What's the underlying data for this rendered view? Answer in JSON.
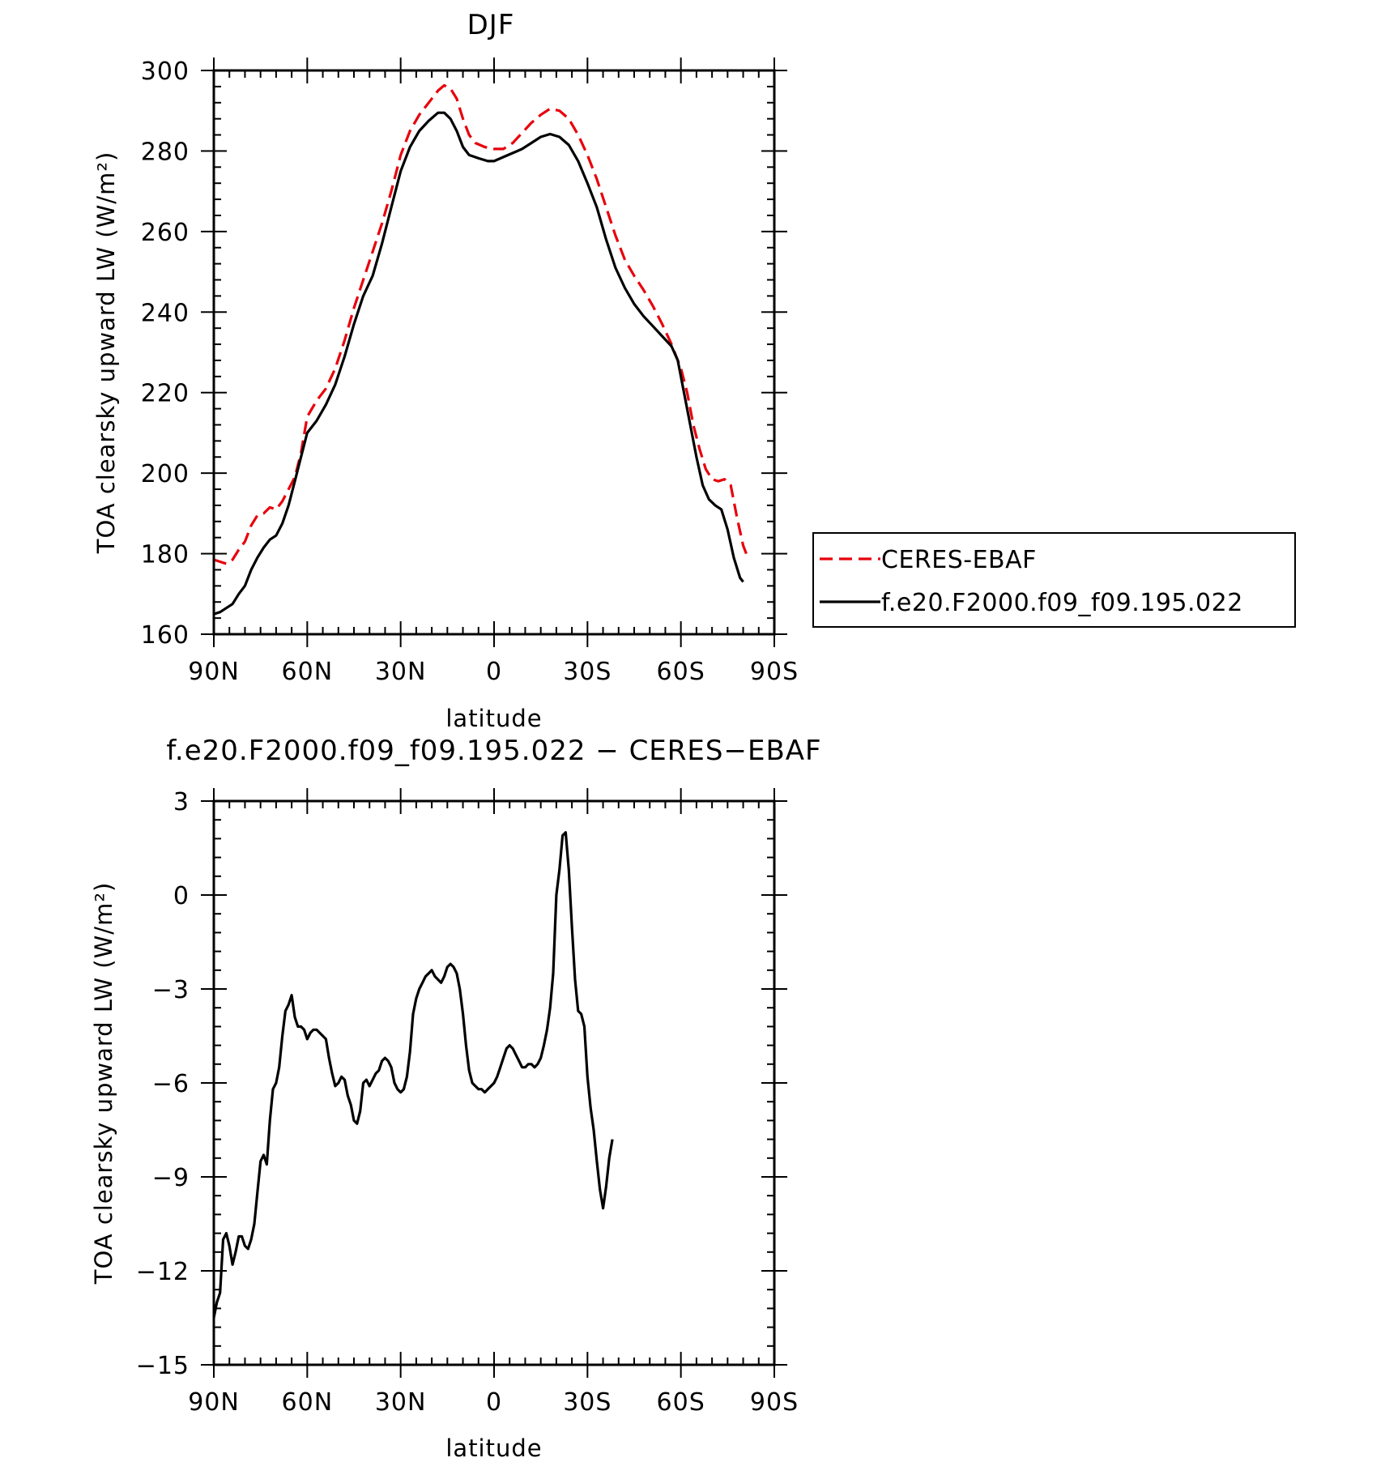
{
  "chart_data": [
    {
      "type": "line",
      "title": "DJF",
      "xlabel": "latitude",
      "ylabel": "TOA clearsky upward LW (W/m²)",
      "xlim": [
        90,
        -90
      ],
      "ylim": [
        160,
        300
      ],
      "xticks": [
        90,
        60,
        30,
        0,
        -30,
        -60,
        -90
      ],
      "xtick_labels": [
        "90N",
        "60N",
        "30N",
        "0",
        "30S",
        "60S",
        "90S"
      ],
      "yticks": [
        160,
        180,
        200,
        220,
        240,
        260,
        280,
        300
      ],
      "ytick_labels": [
        "160",
        "180",
        "200",
        "220",
        "240",
        "260",
        "280",
        "300"
      ],
      "legend_position": "right",
      "series": [
        {
          "name": "CERES-EBAF",
          "color": "#e8000b",
          "dash": "dashed",
          "points": [
            [
              90,
              178.5
            ],
            [
              88,
              178
            ],
            [
              86,
              177.5
            ],
            [
              84,
              178.5
            ],
            [
              82,
              181
            ],
            [
              80,
              183
            ],
            [
              78,
              187
            ],
            [
              76,
              189.5
            ],
            [
              74,
              190
            ],
            [
              72,
              191.5
            ],
            [
              70,
              191
            ],
            [
              68,
              193
            ],
            [
              66,
              196
            ],
            [
              64,
              199
            ],
            [
              62,
              205
            ],
            [
              60,
              214
            ],
            [
              57,
              218
            ],
            [
              54,
              221
            ],
            [
              51,
              226
            ],
            [
              48,
              233
            ],
            [
              45,
              241
            ],
            [
              42,
              248
            ],
            [
              39,
              255
            ],
            [
              36,
              262
            ],
            [
              33,
              270
            ],
            [
              30,
              279
            ],
            [
              27,
              285
            ],
            [
              24,
              289
            ],
            [
              21,
              292
            ],
            [
              18,
              295
            ],
            [
              16,
              296.3
            ],
            [
              14,
              295.5
            ],
            [
              12,
              293
            ],
            [
              10,
              288
            ],
            [
              8,
              284
            ],
            [
              6,
              282
            ],
            [
              3,
              281
            ],
            [
              0,
              280.5
            ],
            [
              -3,
              280.5
            ],
            [
              -6,
              282
            ],
            [
              -9,
              284.5
            ],
            [
              -12,
              287
            ],
            [
              -15,
              289
            ],
            [
              -18,
              290.5
            ],
            [
              -21,
              290
            ],
            [
              -24,
              288
            ],
            [
              -27,
              284
            ],
            [
              -30,
              279
            ],
            [
              -33,
              273
            ],
            [
              -36,
              266
            ],
            [
              -39,
              259
            ],
            [
              -42,
              253
            ],
            [
              -45,
              249
            ],
            [
              -48,
              245.5
            ],
            [
              -51,
              241.5
            ],
            [
              -54,
              237
            ],
            [
              -57,
              232
            ],
            [
              -60,
              226
            ],
            [
              -62,
              220
            ],
            [
              -64,
              212
            ],
            [
              -66,
              206
            ],
            [
              -68,
              201
            ],
            [
              -70,
              198.5
            ],
            [
              -72,
              198
            ],
            [
              -74,
              198.5
            ],
            [
              -76,
              197
            ],
            [
              -78,
              189
            ],
            [
              -80,
              182
            ],
            [
              -81,
              180
            ]
          ]
        },
        {
          "name": "f.e20.F2000.f09_f09.195.022",
          "color": "#000000",
          "dash": "solid",
          "points": [
            [
              90,
              165
            ],
            [
              88,
              165.5
            ],
            [
              86,
              166.5
            ],
            [
              84,
              167.5
            ],
            [
              82,
              170
            ],
            [
              80,
              172
            ],
            [
              78,
              176
            ],
            [
              76,
              179
            ],
            [
              74,
              181.5
            ],
            [
              72,
              183.5
            ],
            [
              70,
              184.5
            ],
            [
              68,
              187.5
            ],
            [
              66,
              192
            ],
            [
              64,
              198
            ],
            [
              62,
              204
            ],
            [
              60,
              210
            ],
            [
              57,
              213
            ],
            [
              54,
              217
            ],
            [
              51,
              222
            ],
            [
              48,
              229
            ],
            [
              45,
              237
            ],
            [
              42,
              244
            ],
            [
              39,
              249
            ],
            [
              36,
              257
            ],
            [
              33,
              266
            ],
            [
              30,
              275
            ],
            [
              27,
              281
            ],
            [
              24,
              285
            ],
            [
              21,
              287.5
            ],
            [
              18,
              289.5
            ],
            [
              16,
              289.5
            ],
            [
              14,
              288
            ],
            [
              12,
              285
            ],
            [
              10,
              281
            ],
            [
              8,
              279
            ],
            [
              5,
              278.2
            ],
            [
              2,
              277.5
            ],
            [
              0,
              277.5
            ],
            [
              -3,
              278.5
            ],
            [
              -6,
              279.5
            ],
            [
              -9,
              280.5
            ],
            [
              -12,
              282
            ],
            [
              -15,
              283.5
            ],
            [
              -18,
              284.2
            ],
            [
              -21,
              283.5
            ],
            [
              -24,
              281.5
            ],
            [
              -27,
              277.5
            ],
            [
              -30,
              272
            ],
            [
              -33,
              266
            ],
            [
              -36,
              258
            ],
            [
              -39,
              251
            ],
            [
              -42,
              246
            ],
            [
              -45,
              242
            ],
            [
              -48,
              239
            ],
            [
              -51,
              236.5
            ],
            [
              -54,
              234
            ],
            [
              -57,
              231.5
            ],
            [
              -59,
              228
            ],
            [
              -61,
              220
            ],
            [
              -63,
              212
            ],
            [
              -65,
              204
            ],
            [
              -67,
              197
            ],
            [
              -69,
              193.5
            ],
            [
              -71,
              192
            ],
            [
              -73,
              191
            ],
            [
              -75,
              186
            ],
            [
              -77,
              179
            ],
            [
              -79,
              174
            ],
            [
              -80,
              173
            ]
          ]
        }
      ]
    },
    {
      "type": "line",
      "title": "f.e20.F2000.f09_f09.195.022 − CERES−EBAF",
      "xlabel": "latitude",
      "ylabel": "TOA clearsky upward LW (W/m²)",
      "xlim": [
        90,
        -90
      ],
      "ylim": [
        -15,
        3
      ],
      "xticks": [
        90,
        60,
        30,
        0,
        -30,
        -60,
        -90
      ],
      "xtick_labels": [
        "90N",
        "60N",
        "30N",
        "0",
        "30S",
        "60S",
        "90S"
      ],
      "yticks": [
        -15,
        -12,
        -9,
        -6,
        -3,
        0,
        3
      ],
      "ytick_labels": [
        "−15",
        "−12",
        "−9",
        "−6",
        "−3",
        "0",
        "3"
      ],
      "series": [
        {
          "color": "#000000",
          "dash": "solid",
          "points": [
            [
              90,
              -13.5
            ],
            [
              89,
              -13
            ],
            [
              88,
              -12.7
            ],
            [
              87,
              -11
            ],
            [
              86,
              -10.8
            ],
            [
              85,
              -11.2
            ],
            [
              84,
              -11.8
            ],
            [
              83,
              -11.4
            ],
            [
              82,
              -10.9
            ],
            [
              81,
              -10.9
            ],
            [
              80,
              -11.2
            ],
            [
              79,
              -11.3
            ],
            [
              78,
              -11
            ],
            [
              77,
              -10.5
            ],
            [
              76,
              -9.5
            ],
            [
              75,
              -8.5
            ],
            [
              74,
              -8.3
            ],
            [
              73,
              -8.6
            ],
            [
              72,
              -7.2
            ],
            [
              71,
              -6.2
            ],
            [
              70,
              -6
            ],
            [
              69,
              -5.5
            ],
            [
              68,
              -4.5
            ],
            [
              67,
              -3.7
            ],
            [
              66,
              -3.5
            ],
            [
              65,
              -3.2
            ],
            [
              64,
              -3.9
            ],
            [
              63,
              -4.2
            ],
            [
              62,
              -4.2
            ],
            [
              61,
              -4.3
            ],
            [
              60,
              -4.6
            ],
            [
              59,
              -4.4
            ],
            [
              58,
              -4.3
            ],
            [
              57,
              -4.3
            ],
            [
              56,
              -4.4
            ],
            [
              55,
              -4.5
            ],
            [
              54,
              -4.6
            ],
            [
              53,
              -5.2
            ],
            [
              52,
              -5.7
            ],
            [
              51,
              -6.1
            ],
            [
              50,
              -6
            ],
            [
              49,
              -5.8
            ],
            [
              48,
              -5.9
            ],
            [
              47,
              -6.4
            ],
            [
              46,
              -6.7
            ],
            [
              45,
              -7.2
            ],
            [
              44,
              -7.3
            ],
            [
              43,
              -6.9
            ],
            [
              42,
              -6
            ],
            [
              41,
              -5.9
            ],
            [
              40,
              -6.1
            ],
            [
              39,
              -5.9
            ],
            [
              38,
              -5.7
            ],
            [
              37,
              -5.6
            ],
            [
              36,
              -5.3
            ],
            [
              35,
              -5.2
            ],
            [
              34,
              -5.3
            ],
            [
              33,
              -5.5
            ],
            [
              32,
              -6
            ],
            [
              31,
              -6.2
            ],
            [
              30,
              -6.3
            ],
            [
              29,
              -6.2
            ],
            [
              28,
              -5.8
            ],
            [
              27,
              -5
            ],
            [
              26,
              -3.8
            ],
            [
              25,
              -3.3
            ],
            [
              24,
              -3
            ],
            [
              23,
              -2.8
            ],
            [
              22,
              -2.6
            ],
            [
              21,
              -2.5
            ],
            [
              20,
              -2.4
            ],
            [
              19,
              -2.6
            ],
            [
              18,
              -2.7
            ],
            [
              17,
              -2.8
            ],
            [
              16,
              -2.6
            ],
            [
              15,
              -2.3
            ],
            [
              14,
              -2.2
            ],
            [
              13,
              -2.3
            ],
            [
              12,
              -2.5
            ],
            [
              11,
              -3
            ],
            [
              10,
              -3.8
            ],
            [
              9,
              -4.8
            ],
            [
              8,
              -5.6
            ],
            [
              7,
              -6
            ],
            [
              6,
              -6.1
            ],
            [
              5,
              -6.2
            ],
            [
              4,
              -6.2
            ],
            [
              3,
              -6.3
            ],
            [
              2,
              -6.2
            ],
            [
              1,
              -6.1
            ],
            [
              0,
              -6
            ],
            [
              -1,
              -5.8
            ],
            [
              -2,
              -5.5
            ],
            [
              -3,
              -5.2
            ],
            [
              -4,
              -4.9
            ],
            [
              -5,
              -4.8
            ],
            [
              -6,
              -4.9
            ],
            [
              -7,
              -5.1
            ],
            [
              -8,
              -5.3
            ],
            [
              -9,
              -5.5
            ],
            [
              -10,
              -5.5
            ],
            [
              -11,
              -5.4
            ],
            [
              -12,
              -5.4
            ],
            [
              -13,
              -5.5
            ],
            [
              -14,
              -5.4
            ],
            [
              -15,
              -5.2
            ],
            [
              -16,
              -4.8
            ],
            [
              -17,
              -4.3
            ],
            [
              -18,
              -3.6
            ],
            [
              -19,
              -2.5
            ],
            [
              -20,
              0
            ],
            [
              -21,
              0.8
            ],
            [
              -22,
              1.9
            ],
            [
              -23,
              2
            ],
            [
              -24,
              0.8
            ],
            [
              -25,
              -1
            ],
            [
              -26,
              -2.7
            ],
            [
              -27,
              -3.7
            ],
            [
              -28,
              -3.8
            ],
            [
              -29,
              -4.2
            ],
            [
              -30,
              -5.8
            ],
            [
              -31,
              -6.8
            ],
            [
              -32,
              -7.5
            ],
            [
              -33,
              -8.5
            ],
            [
              -34,
              -9.4
            ],
            [
              -35,
              -10
            ],
            [
              -36,
              -9.3
            ],
            [
              -37,
              -8.4
            ],
            [
              -38,
              -7.8
            ]
          ]
        }
      ]
    }
  ]
}
